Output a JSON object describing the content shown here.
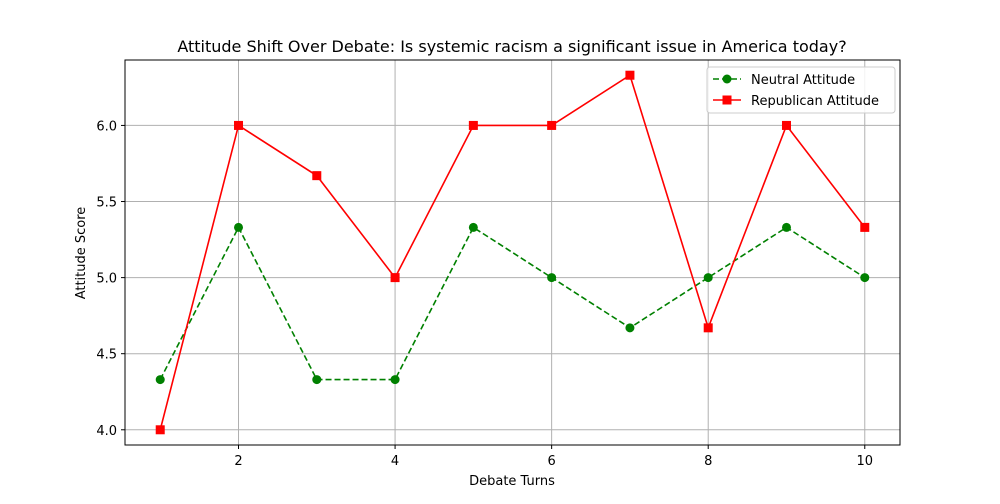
{
  "chart_data": {
    "type": "line",
    "title": "Attitude Shift Over Debate: Is systemic racism a significant issue in America today?",
    "xlabel": "Debate Turns",
    "ylabel": "Attitude Score",
    "x": [
      1,
      2,
      3,
      4,
      5,
      6,
      7,
      8,
      9,
      10
    ],
    "xlim": [
      0.55,
      10.45
    ],
    "ylim": [
      3.9,
      6.43
    ],
    "xticks": [
      2,
      4,
      6,
      8,
      10
    ],
    "xtick_labels": [
      "2",
      "4",
      "6",
      "8",
      "10"
    ],
    "yticks": [
      4.0,
      4.5,
      5.0,
      5.5,
      6.0
    ],
    "ytick_labels": [
      "4.0",
      "4.5",
      "5.0",
      "5.5",
      "6.0"
    ],
    "grid": true,
    "legend_position": "top-right",
    "series": [
      {
        "name": "Neutral Attitude",
        "values": [
          4.33,
          5.33,
          4.33,
          4.33,
          5.33,
          5.0,
          4.67,
          5.0,
          5.33,
          5.0
        ],
        "color": "#008000",
        "line_style": "dashed",
        "marker": "circle"
      },
      {
        "name": "Republican Attitude",
        "values": [
          4.0,
          6.0,
          5.67,
          5.0,
          6.0,
          6.0,
          6.33,
          4.67,
          6.0,
          5.33
        ],
        "color": "#ff0000",
        "line_style": "solid",
        "marker": "square"
      }
    ]
  }
}
